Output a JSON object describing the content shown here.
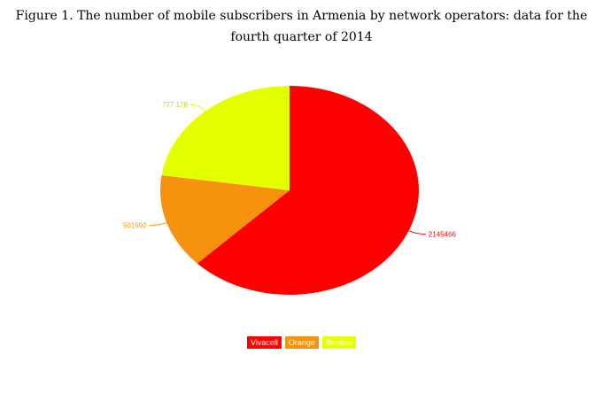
{
  "chart_data": {
    "type": "pie",
    "title": "Figure 1. The number of mobile subscribers in Armenia by network operators:  data for the fourth quarter of 2014",
    "slices": [
      {
        "label": "Vivacell",
        "value": 2145466,
        "value_label": "2145466",
        "color": "#ff0000"
      },
      {
        "label": "Orange",
        "value": 501592,
        "value_label": "501592",
        "color": "#f7920f"
      },
      {
        "label": "Beeline",
        "value": 777178,
        "value_label": "777 178",
        "color": "#e4ff00"
      }
    ],
    "start_angle_deg": 0,
    "direction": "clockwise",
    "legend": "bottom-center"
  }
}
